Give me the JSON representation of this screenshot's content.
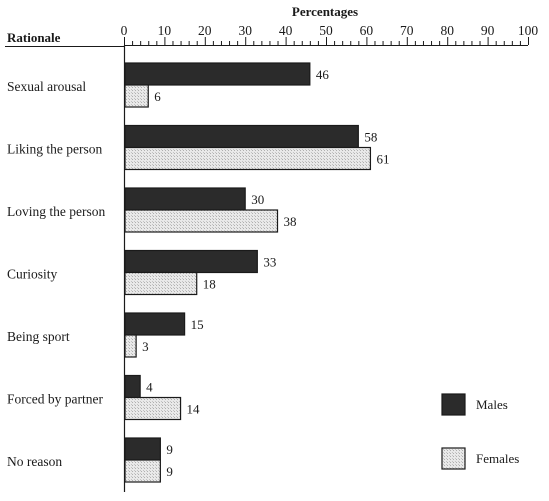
{
  "header": {
    "rationale_label": "Rationale"
  },
  "chart_data": {
    "type": "bar",
    "orientation": "horizontal",
    "title": "Percentages",
    "xlim": [
      0,
      100
    ],
    "x_ticks": [
      0,
      10,
      20,
      30,
      40,
      50,
      60,
      70,
      80,
      90,
      100
    ],
    "categories": [
      "Sexual arousal",
      "Liking the person",
      "Loving the person",
      "Curiosity",
      "Being sport",
      "Forced by partner",
      "No reason"
    ],
    "series": [
      {
        "name": "Males",
        "values": [
          46,
          58,
          30,
          33,
          15,
          4,
          9
        ],
        "color": "#2b2b2b"
      },
      {
        "name": "Females",
        "values": [
          6,
          61,
          38,
          18,
          3,
          14,
          9
        ],
        "color": "#e6e6e6"
      }
    ],
    "legend_position": "bottom-right",
    "grid": false
  }
}
